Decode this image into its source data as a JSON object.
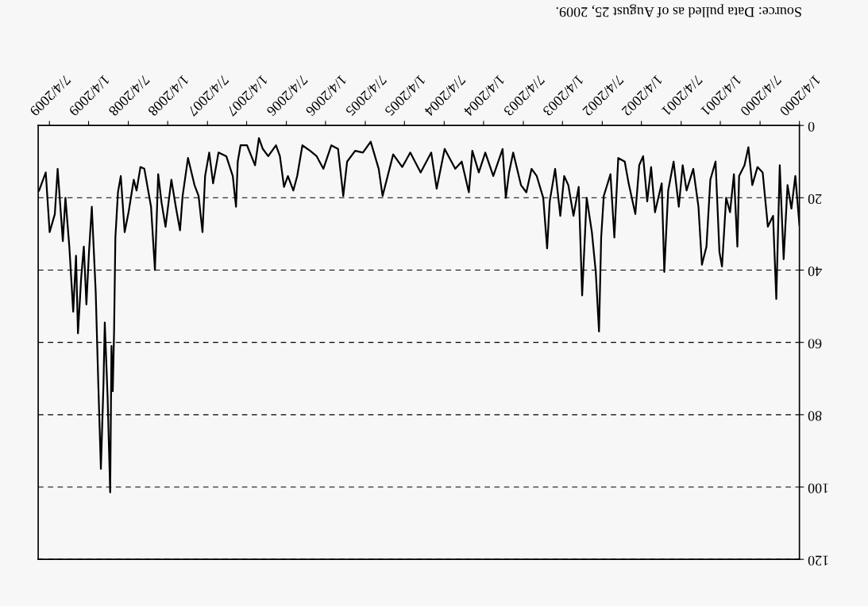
{
  "chart_data": {
    "type": "line",
    "annotations": [
      "Source: Data pulled as of August 25, 2009."
    ],
    "xlim": [
      "2009-08-25",
      "2000-01-04"
    ],
    "ylim": [
      120,
      0
    ],
    "xticks": [
      {
        "value": "2000-01-04",
        "label": "1/4/2000"
      },
      {
        "value": "2000-07-04",
        "label": "7/4/2000"
      },
      {
        "value": "2001-01-04",
        "label": "1/4/2001"
      },
      {
        "value": "2001-07-04",
        "label": "7/4/2001"
      },
      {
        "value": "2002-01-04",
        "label": "1/4/2002"
      },
      {
        "value": "2002-07-04",
        "label": "7/4/2002"
      },
      {
        "value": "2003-01-04",
        "label": "1/4/2003"
      },
      {
        "value": "2003-07-04",
        "label": "7/4/2003"
      },
      {
        "value": "2004-01-04",
        "label": "1/4/2004"
      },
      {
        "value": "2004-07-04",
        "label": "7/4/2004"
      },
      {
        "value": "2005-01-04",
        "label": "1/4/2005"
      },
      {
        "value": "2005-07-04",
        "label": "7/4/2005"
      },
      {
        "value": "2006-01-04",
        "label": "1/4/2006"
      },
      {
        "value": "2006-07-04",
        "label": "7/4/2006"
      },
      {
        "value": "2007-01-04",
        "label": "1/4/2007"
      },
      {
        "value": "2007-07-04",
        "label": "7/4/2007"
      },
      {
        "value": "2008-01-04",
        "label": "1/4/2008"
      },
      {
        "value": "2008-07-04",
        "label": "7/4/2008"
      },
      {
        "value": "2009-01-04",
        "label": "1/4/2009"
      },
      {
        "value": "2009-07-04",
        "label": "7/4/2009"
      }
    ],
    "yticks": [
      0,
      20,
      40,
      60,
      80,
      100,
      120
    ],
    "grid": "y",
    "series": [
      {
        "color": "#000000",
        "x": [
          "2000-01-04",
          "2000-01-23",
          "2000-02-10",
          "2000-02-28",
          "2000-03-17",
          "2000-04-04",
          "2000-04-20",
          "2000-05-05",
          "2000-05-29",
          "2000-06-22",
          "2000-07-16",
          "2000-08-09",
          "2000-08-27",
          "2000-09-14",
          "2000-10-09",
          "2000-10-17",
          "2000-11-02",
          "2000-11-20",
          "2000-12-08",
          "2000-12-27",
          "2001-01-08",
          "2001-01-26",
          "2001-02-19",
          "2001-03-09",
          "2001-03-30",
          "2001-04-15",
          "2001-05-09",
          "2001-06-09",
          "2001-06-27",
          "2001-07-15",
          "2001-08-08",
          "2001-09-02",
          "2001-09-20",
          "2001-10-02",
          "2001-11-02",
          "2001-11-20",
          "2001-12-08",
          "2001-12-27",
          "2002-01-14",
          "2002-02-01",
          "2002-03-04",
          "2002-03-22",
          "2002-04-21",
          "2002-05-09",
          "2002-05-27",
          "2002-06-27",
          "2002-07-09",
          "2002-07-19",
          "2002-08-03",
          "2002-08-21",
          "2002-09-14",
          "2002-10-05",
          "2002-10-21",
          "2002-11-14",
          "2002-12-08",
          "2002-12-27",
          "2003-01-14",
          "2003-02-07",
          "2003-03-04",
          "2003-03-16",
          "2003-04-03",
          "2003-05-03",
          "2003-05-27",
          "2003-06-20",
          "2003-07-15",
          "2003-08-20",
          "2003-09-08",
          "2003-09-23",
          "2003-10-08",
          "2003-11-20",
          "2003-12-27",
          "2004-01-26",
          "2004-02-25",
          "2004-03-12",
          "2004-04-14",
          "2004-05-14",
          "2004-07-02",
          "2004-08-08",
          "2004-09-02",
          "2004-10-21",
          "2004-12-08",
          "2005-01-14",
          "2005-02-25",
          "2005-04-15",
          "2005-05-03",
          "2005-06-09",
          "2005-07-15",
          "2005-08-20",
          "2005-09-26",
          "2005-10-14",
          "2005-11-07",
          "2005-12-08",
          "2006-01-14",
          "2006-02-14",
          "2006-03-16",
          "2006-04-21",
          "2006-05-15",
          "2006-06-02",
          "2006-06-27",
          "2006-07-15",
          "2006-08-03",
          "2006-08-21",
          "2006-09-26",
          "2006-10-21",
          "2006-11-08",
          "2006-11-26",
          "2007-01-02",
          "2007-02-01",
          "2007-02-14",
          "2007-02-22",
          "2007-03-09",
          "2007-04-08",
          "2007-05-14",
          "2007-06-08",
          "2007-06-26",
          "2007-07-15",
          "2007-07-27",
          "2007-08-14",
          "2007-09-02",
          "2007-10-02",
          "2007-10-27",
          "2007-11-08",
          "2007-11-26",
          "2007-12-18",
          "2008-01-14",
          "2008-02-01",
          "2008-02-17",
          "2008-03-03",
          "2008-03-21",
          "2008-04-21",
          "2008-05-09",
          "2008-05-27",
          "2008-06-09",
          "2008-07-03",
          "2008-07-21",
          "2008-08-08",
          "2008-08-21",
          "2008-09-02",
          "2008-09-08",
          "2008-09-14",
          "2008-09-20",
          "2008-09-26",
          "2008-10-08",
          "2008-10-21",
          "2008-10-27",
          "2008-11-08",
          "2008-11-20",
          "2008-12-02",
          "2008-12-20",
          "2009-01-02",
          "2009-01-14",
          "2009-01-26",
          "2009-02-07",
          "2009-02-22",
          "2009-03-03",
          "2009-03-16",
          "2009-04-03",
          "2009-04-21",
          "2009-05-03",
          "2009-05-27",
          "2009-06-09",
          "2009-07-03",
          "2009-07-21",
          "2009-08-21"
        ],
        "values": [
          27.5,
          14,
          23,
          16.5,
          37,
          11,
          48,
          25,
          28,
          13,
          11.5,
          16.5,
          6,
          11,
          14,
          33.5,
          13.5,
          24,
          20,
          39,
          35,
          10,
          15,
          33.5,
          38.5,
          22.5,
          12,
          18,
          11,
          22.5,
          10,
          18,
          40.5,
          16,
          24,
          11.5,
          21,
          8.5,
          11,
          24.5,
          16,
          10,
          9,
          31,
          13.5,
          19.5,
          31,
          57,
          40.5,
          29.5,
          20,
          47,
          17,
          25,
          16.5,
          14,
          25,
          12,
          21,
          34,
          20,
          14,
          12,
          18.5,
          16.5,
          7.5,
          13,
          20,
          6.5,
          14,
          7.5,
          13,
          7,
          18.5,
          10,
          12,
          6.5,
          17.5,
          7.5,
          13,
          7.5,
          11.5,
          8,
          19.5,
          12,
          4.5,
          7.5,
          7,
          10,
          19.5,
          6.5,
          5.5,
          12,
          8.5,
          7,
          5.5,
          14,
          18,
          14,
          17,
          8.5,
          5.5,
          8.5,
          6.5,
          3.5,
          11,
          5.5,
          5.5,
          10,
          22.5,
          14,
          8.5,
          7.5,
          16,
          7.5,
          14,
          29.5,
          19.5,
          16.5,
          9,
          19.5,
          29,
          23,
          15,
          28,
          21.5,
          13.5,
          40,
          22.5,
          12,
          11.5,
          18,
          15,
          24,
          29.5,
          14,
          18.5,
          31,
          57,
          73.5,
          61,
          101.5,
          75,
          54.5,
          71.5,
          95,
          71.5,
          46,
          22.5,
          35,
          49.5,
          33.5,
          42,
          57.5,
          36,
          51.5,
          33.5,
          20,
          32,
          12,
          24.5,
          29.5,
          13,
          18
        ]
      }
    ]
  }
}
